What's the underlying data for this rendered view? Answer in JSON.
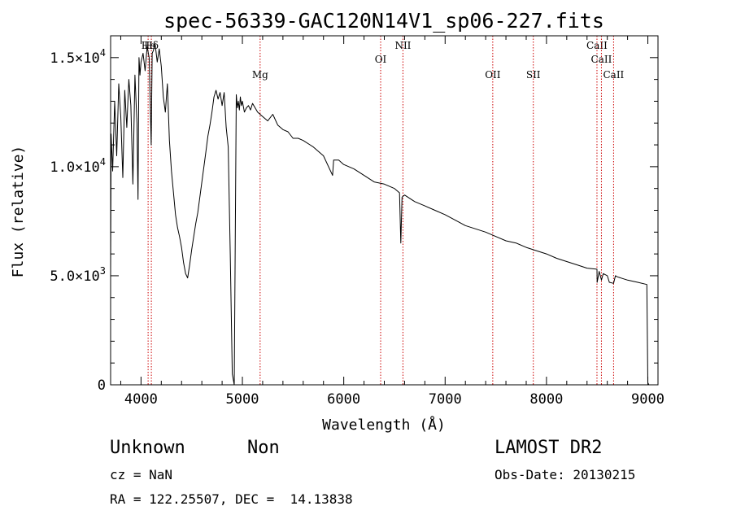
{
  "chart_data": {
    "type": "line",
    "title": "spec-56339-GAC120N14V1_sp06-227.fits",
    "xlabel": "Wavelength (Å)",
    "ylabel": "Flux (relative)",
    "xlim": [
      3700,
      9100
    ],
    "ylim": [
      0,
      16000
    ],
    "x_ticks": [
      4000,
      5000,
      6000,
      7000,
      8000,
      9000
    ],
    "x_tick_labels": [
      "4000",
      "5000",
      "6000",
      "7000",
      "8000",
      "9000"
    ],
    "y_ticks": [
      0,
      5000,
      10000,
      15000
    ],
    "y_tick_labels": [
      {
        "base": "0",
        "exp": ""
      },
      {
        "base": "5.0×10",
        "exp": "3"
      },
      {
        "base": "1.0×10",
        "exp": "4"
      },
      {
        "base": "1.5×10",
        "exp": "4"
      }
    ],
    "series": [
      {
        "color": "#000000",
        "x": [
          3700,
          3705,
          3720,
          3740,
          3760,
          3780,
          3800,
          3820,
          3840,
          3860,
          3880,
          3900,
          3920,
          3940,
          3960,
          3970,
          3980,
          3990,
          4000,
          4020,
          4040,
          4060,
          4080,
          4100,
          4110,
          4120,
          4140,
          4160,
          4180,
          4200,
          4220,
          4240,
          4260,
          4280,
          4300,
          4320,
          4340,
          4360,
          4380,
          4400,
          4420,
          4440,
          4460,
          4480,
          4500,
          4520,
          4540,
          4560,
          4580,
          4600,
          4620,
          4640,
          4660,
          4680,
          4700,
          4720,
          4740,
          4760,
          4780,
          4800,
          4820,
          4840,
          4860,
          4880,
          4900,
          4920,
          4940,
          4950,
          4960,
          4970,
          4980,
          4990,
          5000,
          5020,
          5040,
          5060,
          5080,
          5100,
          5150,
          5200,
          5250,
          5300,
          5350,
          5400,
          5450,
          5500,
          5550,
          5600,
          5700,
          5800,
          5890,
          5900,
          5950,
          6000,
          6100,
          6200,
          6300,
          6400,
          6500,
          6550,
          6563,
          6575,
          6600,
          6700,
          6800,
          6900,
          7000,
          7100,
          7200,
          7300,
          7400,
          7500,
          7600,
          7700,
          7800,
          7900,
          8000,
          8100,
          8200,
          8300,
          8400,
          8498,
          8500,
          8520,
          8542,
          8560,
          8600,
          8620,
          8662,
          8680,
          8700,
          8800,
          8900,
          8990,
          9000,
          9010
        ],
        "y": [
          5000,
          11500,
          9800,
          13000,
          10500,
          13800,
          12300,
          9500,
          13500,
          11800,
          14000,
          12800,
          9200,
          14200,
          12000,
          8500,
          15000,
          14200,
          14800,
          15200,
          14400,
          15500,
          15000,
          11000,
          15200,
          15300,
          15600,
          14800,
          15400,
          14600,
          13200,
          12500,
          13800,
          11200,
          9800,
          8800,
          7800,
          7200,
          6800,
          6300,
          5600,
          5100,
          4900,
          5500,
          6200,
          6800,
          7400,
          7900,
          8600,
          9300,
          10000,
          10700,
          11400,
          11900,
          12500,
          13200,
          13500,
          13100,
          13400,
          12800,
          13400,
          11800,
          10900,
          6000,
          500,
          0,
          13300,
          12700,
          13000,
          12600,
          13200,
          12800,
          13000,
          12500,
          12700,
          12800,
          12600,
          12900,
          12500,
          12300,
          12100,
          12400,
          11900,
          11700,
          11600,
          11300,
          11300,
          11200,
          10900,
          10500,
          9600,
          10300,
          10300,
          10100,
          9900,
          9600,
          9300,
          9200,
          9000,
          8800,
          6500,
          8600,
          8700,
          8400,
          8200,
          8000,
          7800,
          7550,
          7300,
          7150,
          7000,
          6800,
          6600,
          6500,
          6300,
          6150,
          6000,
          5800,
          5650,
          5500,
          5350,
          5300,
          4700,
          5200,
          4800,
          5100,
          5000,
          4700,
          4650,
          5000,
          4950,
          4800,
          4700,
          4600,
          100,
          0
        ]
      }
    ],
    "line_markers": [
      {
        "label": "Hδ",
        "x": 4102,
        "color": "#cc0000"
      },
      {
        "label": "Hε",
        "x": 4070,
        "color": "#cc0000"
      },
      {
        "label": "Mg",
        "x": 5175,
        "color": "#cc0000"
      },
      {
        "label": "OI",
        "x": 6364,
        "color": "#cc0000"
      },
      {
        "label": "NII",
        "x": 6584,
        "color": "#cc0000"
      },
      {
        "label": "OII",
        "x": 7470,
        "color": "#cc0000"
      },
      {
        "label": "SII",
        "x": 7870,
        "color": "#cc0000"
      },
      {
        "label": "CaII",
        "x": 8498,
        "color": "#cc0000"
      },
      {
        "label": "CaII",
        "x": 8542,
        "color": "#cc0000"
      },
      {
        "label": "CaII",
        "x": 8662,
        "color": "#cc0000"
      }
    ],
    "grid": false,
    "legend": "none"
  },
  "footer": {
    "class_label": "Unknown",
    "subclass_label": "Non",
    "cz_label": "cz = NaN",
    "radec_label": "RA = 122.25507, DEC =  14.13838",
    "survey_label": "LAMOST DR2",
    "obsdate_label": "Obs-Date: 20130215"
  }
}
